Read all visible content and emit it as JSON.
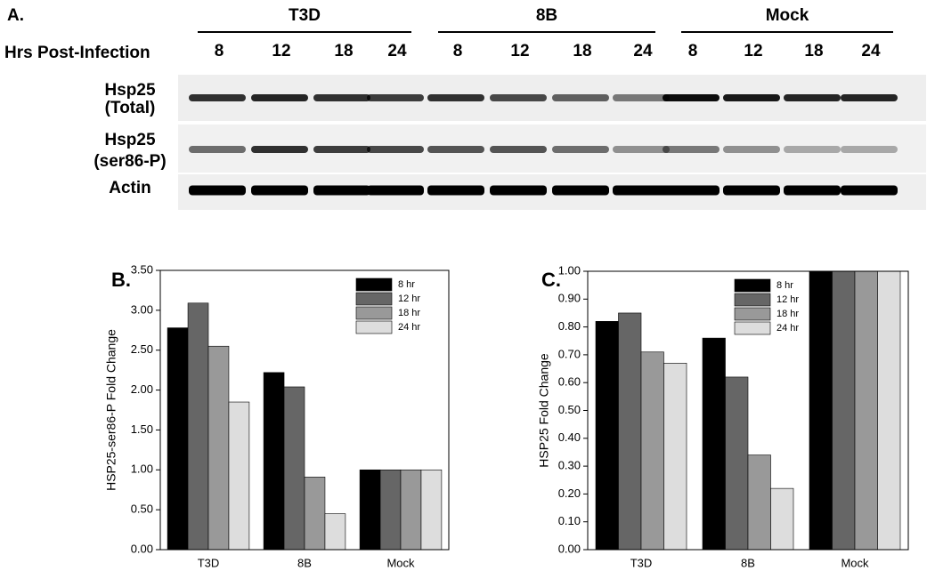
{
  "blot": {
    "label": "A.",
    "x_label": "Hrs Post-Infection",
    "groups": [
      {
        "name": "T3D",
        "lanes": [
          "8",
          "12",
          "18",
          "24"
        ]
      },
      {
        "name": "8B",
        "lanes": [
          "8",
          "12",
          "18",
          "24"
        ]
      },
      {
        "name": "Mock",
        "lanes": [
          "8",
          "12",
          "18",
          "24"
        ]
      }
    ],
    "rows": [
      [
        "Hsp25",
        "(Total)"
      ],
      [
        "Hsp25",
        "(ser86-P)"
      ],
      [
        "Actin"
      ]
    ]
  },
  "chart_data": [
    {
      "type": "bar",
      "label": "B.",
      "y_label": "HSP25-ser86-P Fold Change",
      "categories": [
        "T3D",
        "8B",
        "Mock"
      ],
      "series": [
        {
          "name": "8 hr",
          "color": "#000000",
          "values": [
            2.78,
            2.22,
            1.0
          ]
        },
        {
          "name": "12 hr",
          "color": "#666666",
          "values": [
            3.09,
            2.04,
            1.0
          ]
        },
        {
          "name": "18 hr",
          "color": "#999999",
          "values": [
            2.55,
            0.91,
            1.0
          ]
        },
        {
          "name": "24 hr",
          "color": "#dddddd",
          "values": [
            1.85,
            0.45,
            1.0
          ]
        }
      ],
      "ylim": [
        0,
        3.5
      ],
      "yticks": [
        {
          "value": 0,
          "label": "0.00"
        },
        {
          "value": 0.5,
          "label": "0.50"
        },
        {
          "value": 1,
          "label": "1.00"
        },
        {
          "value": 1.5,
          "label": "1.50"
        },
        {
          "value": 2,
          "label": "2.00"
        },
        {
          "value": 2.5,
          "label": "2.50"
        },
        {
          "value": 3,
          "label": "3.00"
        },
        {
          "value": 3.5,
          "label": "3.50"
        }
      ],
      "legend": "upper right",
      "grid": false
    },
    {
      "type": "bar",
      "label": "C.",
      "y_label": "HSP25 Fold Change",
      "categories": [
        "T3D",
        "8B",
        "Mock"
      ],
      "series": [
        {
          "name": "8 hr",
          "color": "#000000",
          "values": [
            0.82,
            0.76,
            1.0
          ]
        },
        {
          "name": "12 hr",
          "color": "#666666",
          "values": [
            0.85,
            0.62,
            1.0
          ]
        },
        {
          "name": "18 hr",
          "color": "#999999",
          "values": [
            0.71,
            0.34,
            1.0
          ]
        },
        {
          "name": "24 hr",
          "color": "#dddddd",
          "values": [
            0.67,
            0.22,
            1.0
          ]
        }
      ],
      "ylim": [
        0,
        1
      ],
      "yticks": [
        {
          "value": 0,
          "label": "0.00"
        },
        {
          "value": 0.1,
          "label": "0.10"
        },
        {
          "value": 0.2,
          "label": "0.20"
        },
        {
          "value": 0.3,
          "label": "0.30"
        },
        {
          "value": 0.4,
          "label": "0.40"
        },
        {
          "value": 0.5,
          "label": "0.50"
        },
        {
          "value": 0.6,
          "label": "0.60"
        },
        {
          "value": 0.7,
          "label": "0.70"
        },
        {
          "value": 0.8,
          "label": "0.80"
        },
        {
          "value": 0.9,
          "label": "0.90"
        },
        {
          "value": 1,
          "label": "1.00"
        }
      ],
      "legend": "upper left",
      "grid": false
    }
  ]
}
